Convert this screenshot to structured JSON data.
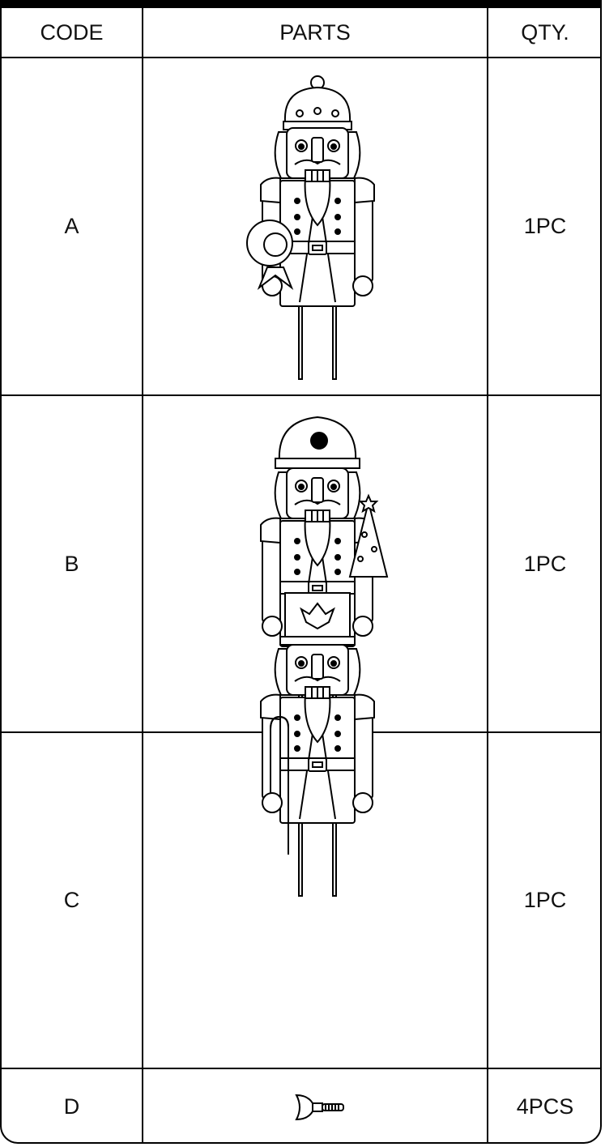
{
  "table": {
    "header": [
      "CODE",
      "PARTS",
      "QTY."
    ],
    "rows": [
      [
        "A",
        "1PC"
      ],
      [
        "B",
        "1PC"
      ],
      [
        "C",
        "1PC"
      ],
      [
        "D",
        "4PCS"
      ]
    ]
  }
}
